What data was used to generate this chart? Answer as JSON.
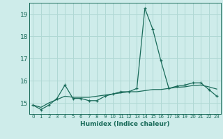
{
  "title": "",
  "xlabel": "Humidex (Indice chaleur)",
  "ylabel": "",
  "background_color": "#ceecea",
  "grid_color": "#b0d8d4",
  "line_color": "#1a6b5a",
  "x_values": [
    0,
    1,
    2,
    3,
    4,
    5,
    6,
    7,
    8,
    9,
    10,
    11,
    12,
    13,
    14,
    15,
    16,
    17,
    18,
    19,
    20,
    21,
    22,
    23
  ],
  "y_line1": [
    14.9,
    14.7,
    14.9,
    15.2,
    15.8,
    15.2,
    15.2,
    15.1,
    15.1,
    15.3,
    15.4,
    15.5,
    15.5,
    15.65,
    19.25,
    18.3,
    16.9,
    15.65,
    15.75,
    15.8,
    15.9,
    15.9,
    15.6,
    15.3
  ],
  "y_line2": [
    14.9,
    14.8,
    15.0,
    15.15,
    15.3,
    15.25,
    15.25,
    15.25,
    15.3,
    15.35,
    15.4,
    15.45,
    15.5,
    15.5,
    15.55,
    15.6,
    15.6,
    15.65,
    15.7,
    15.72,
    15.78,
    15.8,
    15.72,
    15.62
  ],
  "ylim": [
    14.5,
    19.5
  ],
  "yticks": [
    15,
    16,
    17,
    18,
    19
  ],
  "xlim": [
    -0.5,
    23.5
  ],
  "xticks": [
    0,
    1,
    2,
    3,
    4,
    5,
    6,
    7,
    8,
    9,
    10,
    11,
    12,
    13,
    14,
    15,
    16,
    17,
    18,
    19,
    20,
    21,
    22,
    23
  ]
}
